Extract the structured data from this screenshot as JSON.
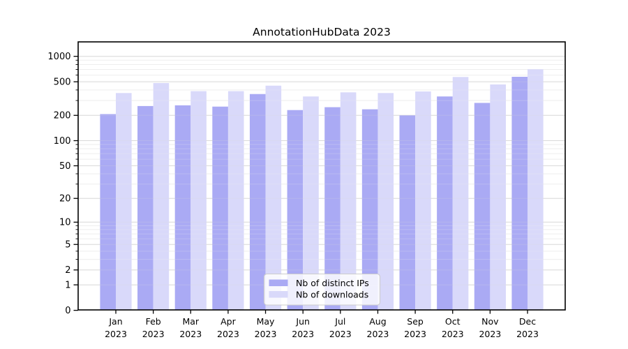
{
  "title": "AnnotationHubData 2023",
  "chart_data": {
    "type": "bar",
    "title": "AnnotationHubData 2023",
    "categories": [
      "Jan",
      "Feb",
      "Mar",
      "Apr",
      "May",
      "Jun",
      "Jul",
      "Aug",
      "Sep",
      "Oct",
      "Nov",
      "Dec"
    ],
    "category_year": "2023",
    "series": [
      {
        "name": "Nb of distinct IPs",
        "color": "#aaaaf4",
        "values": [
          207,
          258,
          263,
          254,
          358,
          231,
          250,
          236,
          200,
          335,
          281,
          573
        ]
      },
      {
        "name": "Nb of downloads",
        "color": "#d9d9fa",
        "values": [
          368,
          483,
          387,
          387,
          450,
          335,
          375,
          368,
          384,
          570,
          465,
          706
        ]
      }
    ],
    "y_scale": "log1p",
    "y_ticks": [
      1000,
      500,
      200,
      100,
      50,
      20,
      10,
      5,
      2,
      1,
      0
    ],
    "y_minor_gridlines": [
      900,
      800,
      700,
      600,
      400,
      300,
      90,
      80,
      70,
      60,
      40,
      30,
      9,
      8,
      7,
      6,
      4,
      3
    ],
    "ylim": [
      0,
      1480
    ],
    "grid": true,
    "legend_position": "lower center",
    "axis_color": "#000000",
    "grid_major_color": "#d9d9d9",
    "grid_minor_color": "#eeeeee"
  }
}
